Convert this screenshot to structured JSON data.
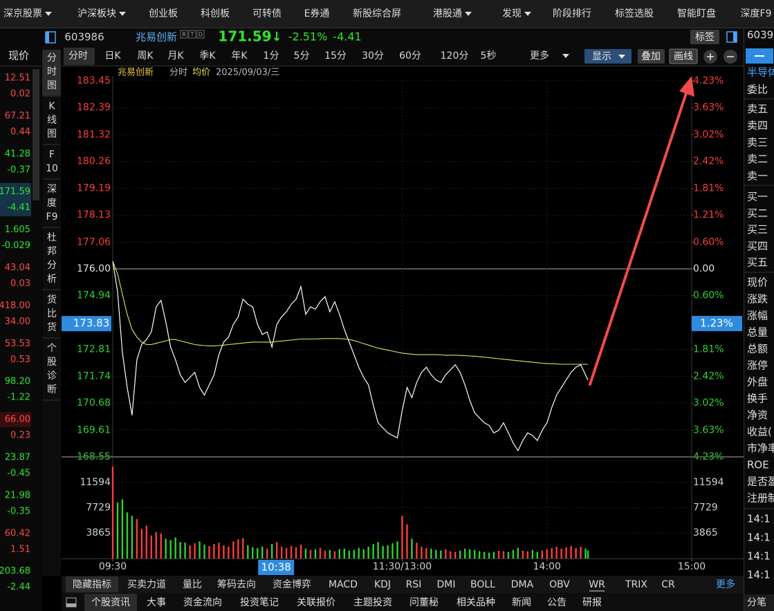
{
  "menu": [
    "深京股票",
    "沪深板块",
    "创业板",
    "科创板",
    "可转债",
    "E券通",
    "新股综合屏",
    "港股通",
    "发现",
    "阶段排行",
    "标签选股",
    "智能盯盘",
    "深度F9"
  ],
  "watchlist": {
    "header": "现价",
    "rows": [
      {
        "price": "12.51",
        "change": "0.02"
      },
      {
        "price": "67.21",
        "change": "0.44"
      },
      {
        "price": "41.28",
        "change": "-0.37"
      },
      {
        "price": "171.59",
        "change": "-4.41"
      },
      {
        "price": "1.605",
        "change": "-0.029"
      },
      {
        "price": "43.04",
        "change": "0.03"
      },
      {
        "price": "418.00",
        "change": "34.00"
      },
      {
        "price": "53.53",
        "change": "0.53"
      },
      {
        "price": "98.20",
        "change": "-1.22"
      },
      {
        "price": "66.00",
        "change": "0.23"
      },
      {
        "price": "23.87",
        "change": "-0.45"
      },
      {
        "price": "21.98",
        "change": "-0.35"
      },
      {
        "price": "60.42",
        "change": "1.51"
      },
      {
        "price": "203.68",
        "change": "-2.44"
      }
    ]
  },
  "side_tabs": [
    "分时图",
    "K线图",
    "F10",
    "深度F9",
    "杜邦分析",
    "货比货",
    "个股诊断"
  ],
  "quote": {
    "code": "603986",
    "name": "兆易创新",
    "flags": [
      "R",
      "T",
      "D"
    ],
    "price": "171.59",
    "arrow": "↓",
    "change_pct": "-2.51%",
    "change": "-4.41",
    "tag_button": "标签"
  },
  "periods": [
    "分时",
    "日K",
    "周K",
    "月K",
    "季K",
    "年K",
    "1分",
    "5分",
    "15分",
    "30分",
    "60分",
    "120分",
    "5秒"
  ],
  "toolbar": {
    "more": "更多",
    "display": "显示",
    "overlay": "叠加",
    "draw": "画线"
  },
  "chart_data": [
    {
      "type": "line",
      "title": "兆易创新",
      "date": "2025/09/03/三",
      "x": [
        0,
        2,
        4,
        6,
        8,
        10,
        12,
        14,
        16,
        18,
        20,
        22,
        24,
        26,
        28,
        30,
        32,
        34,
        36,
        38,
        40,
        42,
        44,
        46,
        48,
        50,
        52,
        54,
        56,
        58,
        60,
        62,
        64,
        66,
        68,
        70,
        72,
        74,
        76,
        78,
        80,
        82,
        84,
        86,
        88,
        90,
        92,
        94,
        96,
        98,
        100,
        102,
        104,
        106,
        108,
        110,
        112,
        114,
        116,
        118,
        120,
        122,
        124,
        126,
        128,
        130,
        132,
        134,
        136,
        138,
        140,
        142,
        144,
        146,
        148,
        150,
        152,
        154,
        156,
        158,
        160,
        162,
        164,
        166,
        168,
        170,
        172,
        174,
        176,
        178,
        180,
        182,
        184,
        186,
        188,
        190,
        192,
        194,
        196,
        197
      ],
      "series": [
        {
          "name": "分时",
          "color": "#ffffff",
          "values": [
            176.3,
            175.1,
            172.7,
            171.3,
            170.2,
            172.4,
            173.0,
            173.2,
            173.5,
            174.5,
            174.75,
            173.9,
            172.9,
            172.4,
            171.8,
            171.5,
            171.7,
            171.9,
            171.3,
            171.0,
            171.4,
            171.8,
            172.6,
            173.1,
            173.3,
            173.8,
            174.1,
            174.8,
            174.6,
            174.5,
            173.8,
            173.4,
            173.5,
            172.9,
            173.8,
            174.1,
            174.3,
            174.6,
            174.8,
            175.3,
            174.2,
            174.5,
            174.4,
            174.7,
            174.9,
            174.3,
            174.7,
            174.2,
            173.6,
            173.1,
            172.6,
            172.1,
            171.7,
            171.4,
            170.6,
            169.9,
            169.7,
            169.5,
            169.4,
            169.3,
            170.4,
            171.3,
            170.9,
            171.5,
            171.9,
            172.1,
            171.8,
            171.6,
            171.5,
            171.8,
            172.0,
            172.2,
            171.9,
            171.4,
            170.8,
            170.3,
            170.1,
            169.9,
            169.8,
            169.5,
            169.6,
            169.9,
            169.5,
            169.1,
            168.8,
            169.2,
            169.5,
            169.4,
            169.2,
            169.6,
            169.9,
            170.5,
            171.0,
            171.3,
            171.6,
            171.9,
            172.1,
            172.2,
            171.8,
            171.59
          ]
        },
        {
          "name": "均价",
          "color": "#e8e25a",
          "values": [
            176.3,
            175.8,
            175.0,
            174.2,
            173.6,
            173.3,
            173.1,
            173.0,
            173.0,
            173.05,
            173.1,
            173.15,
            173.2,
            173.2,
            173.15,
            173.1,
            173.05,
            173.0,
            172.98,
            172.96,
            172.95,
            172.95,
            172.96,
            172.98,
            173.0,
            173.02,
            173.04,
            173.06,
            173.08,
            173.1,
            173.1,
            173.1,
            173.1,
            173.1,
            173.12,
            173.14,
            173.16,
            173.18,
            173.2,
            173.22,
            173.22,
            173.22,
            173.22,
            173.23,
            173.24,
            173.24,
            173.24,
            173.24,
            173.22,
            173.2,
            173.16,
            173.1,
            173.04,
            172.98,
            172.92,
            172.86,
            172.82,
            172.78,
            172.74,
            172.7,
            172.66,
            172.64,
            172.62,
            172.6,
            172.6,
            172.6,
            172.6,
            172.6,
            172.59,
            172.58,
            172.58,
            172.58,
            172.57,
            172.56,
            172.55,
            172.54,
            172.52,
            172.5,
            172.48,
            172.46,
            172.44,
            172.42,
            172.4,
            172.38,
            172.36,
            172.34,
            172.32,
            172.3,
            172.28,
            172.26,
            172.25,
            172.24,
            172.23,
            172.22,
            172.22,
            172.22,
            172.22,
            172.22,
            172.22,
            172.22
          ]
        }
      ],
      "xlim": [
        0,
        240
      ],
      "xticks": [
        {
          "value": 0,
          "label": "09:30"
        },
        {
          "value": 120,
          "label": "11:30/13:00"
        },
        {
          "value": 180,
          "label": "14:00"
        },
        {
          "value": 240,
          "label": "15:00"
        }
      ],
      "ylim": [
        168.55,
        183.45
      ],
      "yticks": [
        183.45,
        182.39,
        181.32,
        180.26,
        179.19,
        178.13,
        177.06,
        {
          "value": 176,
          "label": "176.00"
        },
        174.94,
        172.81,
        171.74,
        170.68,
        169.61,
        168.55
      ],
      "y2lim": [
        -4.23,
        4.23
      ],
      "y2ticks": [
        {
          "value": 4.23,
          "label": "4.23%"
        },
        {
          "value": 3.63,
          "label": "3.63%"
        },
        {
          "value": 3.02,
          "label": "3.02%"
        },
        {
          "value": 2.42,
          "label": "2.42%"
        },
        {
          "value": 1.81,
          "label": "1.81%"
        },
        {
          "value": 1.21,
          "label": "1.21%"
        },
        {
          "value": 0.6,
          "label": "0.60%"
        },
        {
          "value": 0,
          "label": "0.00"
        },
        {
          "value": -0.6,
          "label": "0.60%"
        },
        {
          "value": -1.81,
          "label": "1.81%"
        },
        {
          "value": -2.42,
          "label": "2.42%"
        },
        {
          "value": -3.02,
          "label": "3.02%"
        },
        {
          "value": -3.63,
          "label": "3.63%"
        },
        {
          "value": -4.23,
          "label": "4.23%"
        }
      ],
      "crosshair": {
        "x": {
          "value": 68,
          "label": "10:38"
        },
        "y": 173.83,
        "y2": {
          "value": -1.23,
          "label": "1.23%"
        }
      },
      "grid": true,
      "up_color": "#ff3c3c",
      "down_color": "#2bd62b"
    },
    {
      "type": "bar",
      "x": [
        0,
        2,
        4,
        6,
        8,
        10,
        12,
        14,
        16,
        18,
        20,
        22,
        24,
        26,
        28,
        30,
        32,
        34,
        36,
        38,
        40,
        42,
        44,
        46,
        48,
        50,
        52,
        54,
        56,
        58,
        60,
        62,
        64,
        66,
        68,
        70,
        72,
        74,
        76,
        78,
        80,
        82,
        84,
        86,
        88,
        90,
        92,
        94,
        96,
        98,
        100,
        102,
        104,
        106,
        108,
        110,
        112,
        114,
        116,
        118,
        120,
        122,
        124,
        126,
        128,
        130,
        132,
        134,
        136,
        138,
        140,
        142,
        144,
        146,
        148,
        150,
        152,
        154,
        156,
        158,
        160,
        162,
        164,
        166,
        168,
        170,
        172,
        174,
        176,
        178,
        180,
        182,
        184,
        186,
        188,
        190,
        192,
        194,
        196,
        197
      ],
      "values": [
        14000,
        8500,
        9000,
        7000,
        6500,
        6000,
        4500,
        5000,
        3500,
        4000,
        3800,
        3000,
        2800,
        3200,
        2500,
        2400,
        2000,
        2300,
        2600,
        2100,
        1900,
        2200,
        2400,
        2000,
        1800,
        2600,
        2900,
        3100,
        2000,
        1700,
        1600,
        1800,
        1500,
        2200,
        2500,
        1800,
        1600,
        1900,
        1700,
        2100,
        1500,
        1300,
        1400,
        1600,
        1200,
        1300,
        1100,
        1400,
        1500,
        1200,
        1300,
        1600,
        1400,
        1800,
        2200,
        2500,
        1900,
        2000,
        2300,
        2600,
        6500,
        5200,
        3000,
        2400,
        1800,
        1600,
        1500,
        1300,
        1200,
        1400,
        1100,
        1000,
        1200,
        1500,
        1400,
        1300,
        1100,
        1000,
        900,
        1000,
        1200,
        1100,
        1000,
        1300,
        1600,
        1200,
        1100,
        1300,
        1000,
        1200,
        1400,
        1600,
        1800,
        1500,
        1700,
        1900,
        1600,
        1800,
        1500,
        1200
      ],
      "ylim": [
        0,
        15459
      ],
      "yticks": [
        3865,
        7729,
        11594
      ],
      "up_color": "#ff3c3c",
      "down_color": "#2bd62b"
    }
  ],
  "indicator_tabs": [
    "隐藏指标",
    "买卖力道",
    "量比",
    "筹码去向",
    "资金博弈",
    "MACD",
    "KDJ",
    "RSI",
    "DMI",
    "BOLL",
    "DMA",
    "OBV",
    "WR",
    "TRIX",
    "CR",
    "更多"
  ],
  "info_tabs": [
    "个股资讯",
    "大事",
    "资金流向",
    "投资笔记",
    "关联报价",
    "主题投资",
    "问董秘",
    "相关品种",
    "新闻",
    "公告",
    "研报"
  ],
  "right_panel": {
    "code": "6039",
    "sector": "半导体",
    "ratio": "委比",
    "asks": [
      "卖五",
      "卖四",
      "卖三",
      "卖二",
      "卖一"
    ],
    "bids": [
      "买一",
      "买二",
      "买三",
      "买四",
      "买五"
    ],
    "fields": [
      "现价",
      "涨跌",
      "涨幅",
      "总量",
      "总额",
      "涨停",
      "外盘",
      "换手",
      "净资",
      "收益(",
      "市净率",
      "ROE",
      "是否盈",
      "注册制"
    ],
    "times": [
      "14:1",
      "14:1",
      "14:1",
      "14:1"
    ],
    "footer": "分笔"
  }
}
